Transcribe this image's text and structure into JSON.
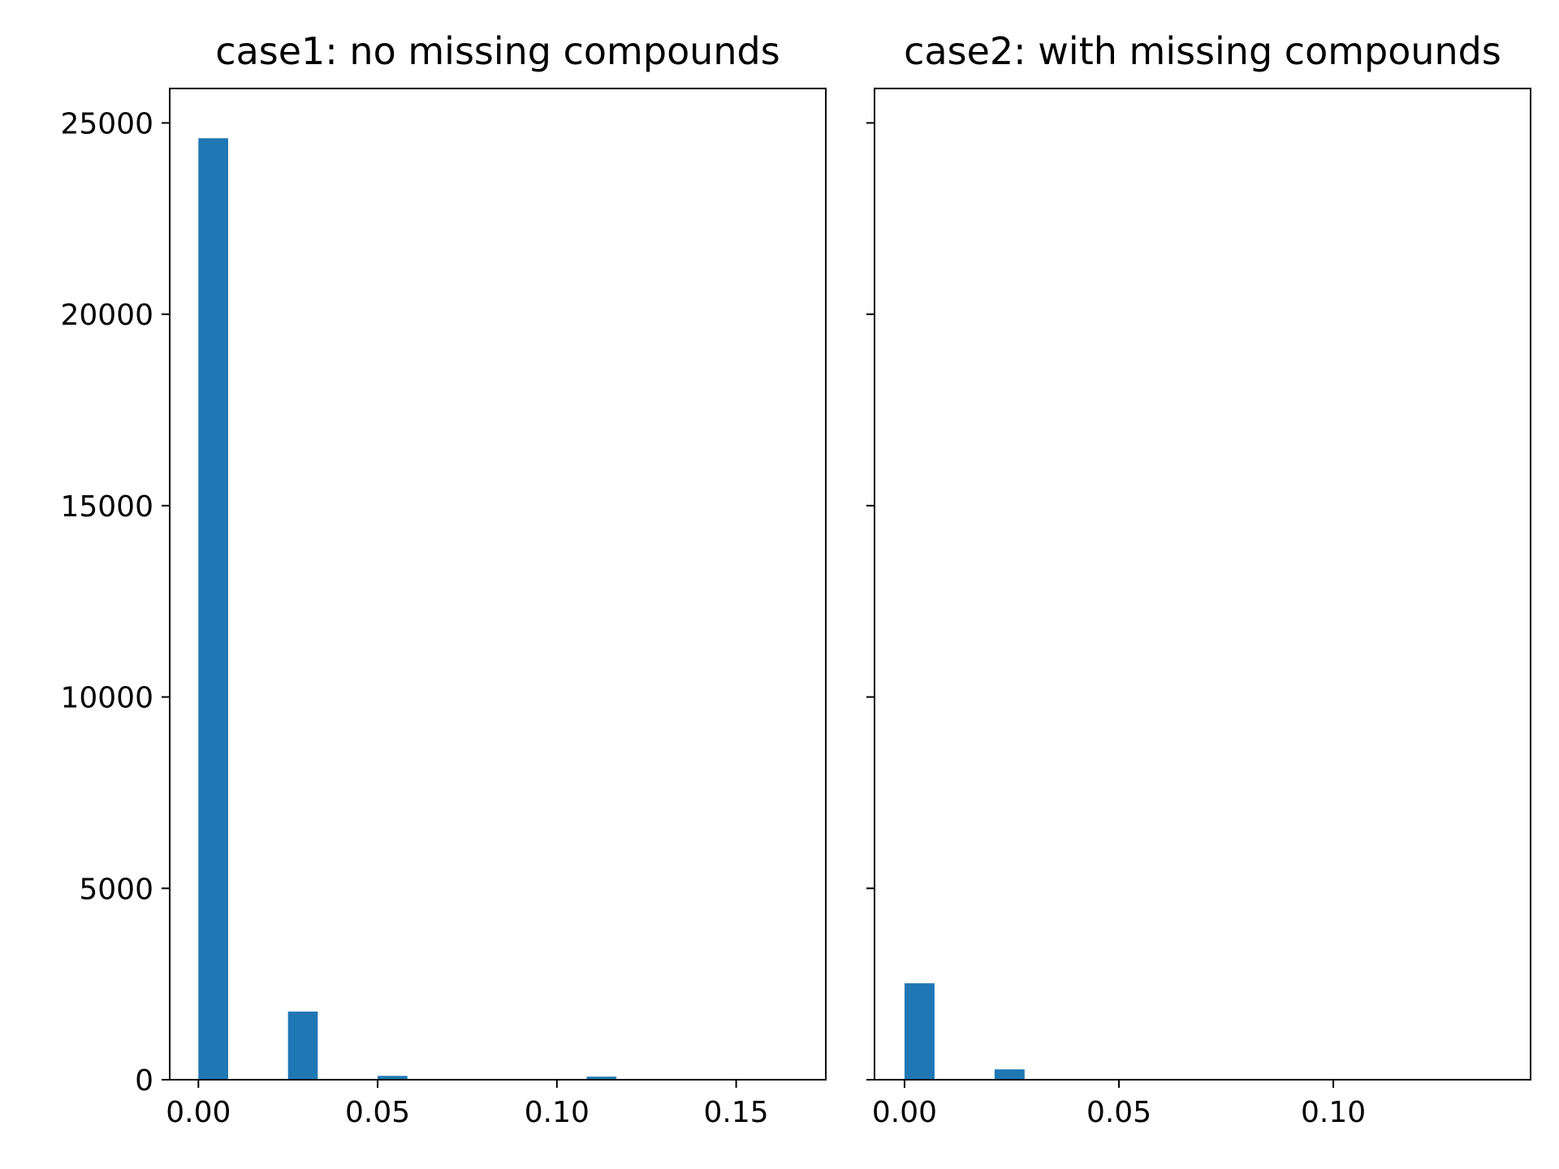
{
  "chart_data": [
    {
      "type": "bar",
      "title": "case1: no missing compounds",
      "xlabel": "",
      "ylabel": "",
      "xlim": [
        -0.008,
        0.175
      ],
      "ylim": [
        0,
        25900
      ],
      "bar_width": 0.0083,
      "bars": [
        {
          "x": 0.0,
          "value": 24600
        },
        {
          "x": 0.025,
          "value": 1780
        },
        {
          "x": 0.05,
          "value": 100
        },
        {
          "x": 0.075,
          "value": 0
        },
        {
          "x": 0.1,
          "value": 0
        },
        {
          "x": 0.1083,
          "value": 80
        }
      ],
      "xticks": [
        0.0,
        0.05,
        0.1,
        0.15
      ],
      "xtick_labels": [
        "0.00",
        "0.05",
        "0.10",
        "0.15"
      ],
      "yticks": [
        0,
        5000,
        10000,
        15000,
        20000,
        25000
      ],
      "ytick_labels": [
        "0",
        "5000",
        "10000",
        "15000",
        "20000",
        "25000"
      ],
      "grid": false,
      "color": "#1f77b4"
    },
    {
      "type": "bar",
      "title": "case2: with missing compounds",
      "xlabel": "",
      "ylabel": "",
      "xlim": [
        -0.007,
        0.146
      ],
      "ylim": [
        0,
        25900
      ],
      "bar_width": 0.007,
      "bars": [
        {
          "x": 0.0,
          "value": 2520
        },
        {
          "x": 0.021,
          "value": 270
        }
      ],
      "xticks": [
        0.0,
        0.05,
        0.1
      ],
      "xtick_labels": [
        "0.00",
        "0.05",
        "0.10"
      ],
      "yticks": [
        0,
        5000,
        10000,
        15000,
        20000,
        25000
      ],
      "ytick_labels": [],
      "grid": false,
      "color": "#1f77b4"
    }
  ]
}
